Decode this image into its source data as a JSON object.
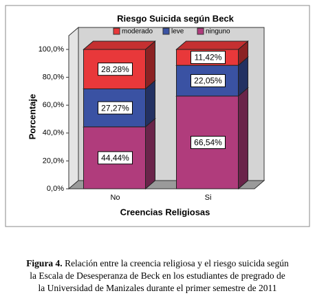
{
  "chart_data": {
    "type": "stacked-bar-3d",
    "title": "Riesgo Suicida según Beck",
    "categories": [
      "No",
      "Si"
    ],
    "series": [
      {
        "name": "ninguno",
        "color": "#b03c7c",
        "values": [
          44.44,
          66.54
        ],
        "value_labels": [
          "44,44%",
          "66,54%"
        ]
      },
      {
        "name": "leve",
        "color": "#3a52a3",
        "values": [
          27.27,
          22.05
        ],
        "value_labels": [
          "27,27%",
          "22,05%"
        ]
      },
      {
        "name": "moderado",
        "color": "#e8383a",
        "values": [
          28.28,
          11.42
        ],
        "value_labels": [
          "28,28%",
          "11,42%"
        ]
      }
    ],
    "legend_order": [
      2,
      1,
      0
    ],
    "ylim": [
      0,
      100
    ],
    "yticks": [
      {
        "value": 0,
        "label": "0,0%"
      },
      {
        "value": 20,
        "label": "20,0%"
      },
      {
        "value": 40,
        "label": "40,0%"
      },
      {
        "value": 60,
        "label": "60,0%"
      },
      {
        "value": 80,
        "label": "80,0%"
      },
      {
        "value": 100,
        "label": "100,0%"
      }
    ],
    "ylabel": "Porcentaje",
    "xlabel": "Creencias Religiosas"
  },
  "caption": {
    "label": "Figura 4.",
    "lines": [
      "Relación entre la creencia religiosa y el riesgo suicida según",
      "la Escala de Desesperanza de Beck en los estudiantes de pregrado de",
      "la Universidad de Manizales durante el primer semestre de 2011"
    ]
  }
}
